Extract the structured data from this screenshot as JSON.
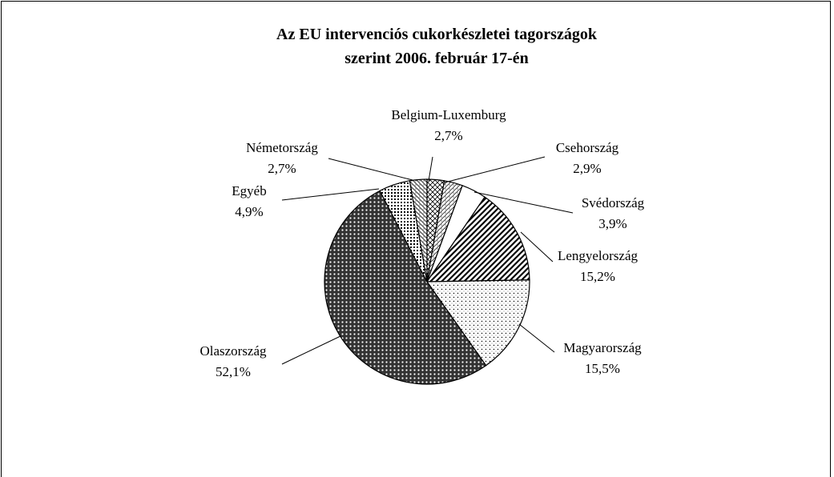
{
  "chart_data": {
    "type": "pie",
    "title": "Az EU intervenciós cukorkészletei tagországok szerint 2006. február 17-én",
    "categories": [
      "Belgium-Luxemburg",
      "Csehország",
      "Svédország",
      "Lengyelország",
      "Magyarország",
      "Olaszország",
      "Egyéb",
      "Németország"
    ],
    "values": [
      2.7,
      2.9,
      3.9,
      15.2,
      15.5,
      52.1,
      4.9,
      2.7
    ],
    "value_labels": [
      "2,7%",
      "2,9%",
      "3,9%",
      "15,2%",
      "15,5%",
      "52,1%",
      "4,9%",
      "2,7%"
    ]
  }
}
